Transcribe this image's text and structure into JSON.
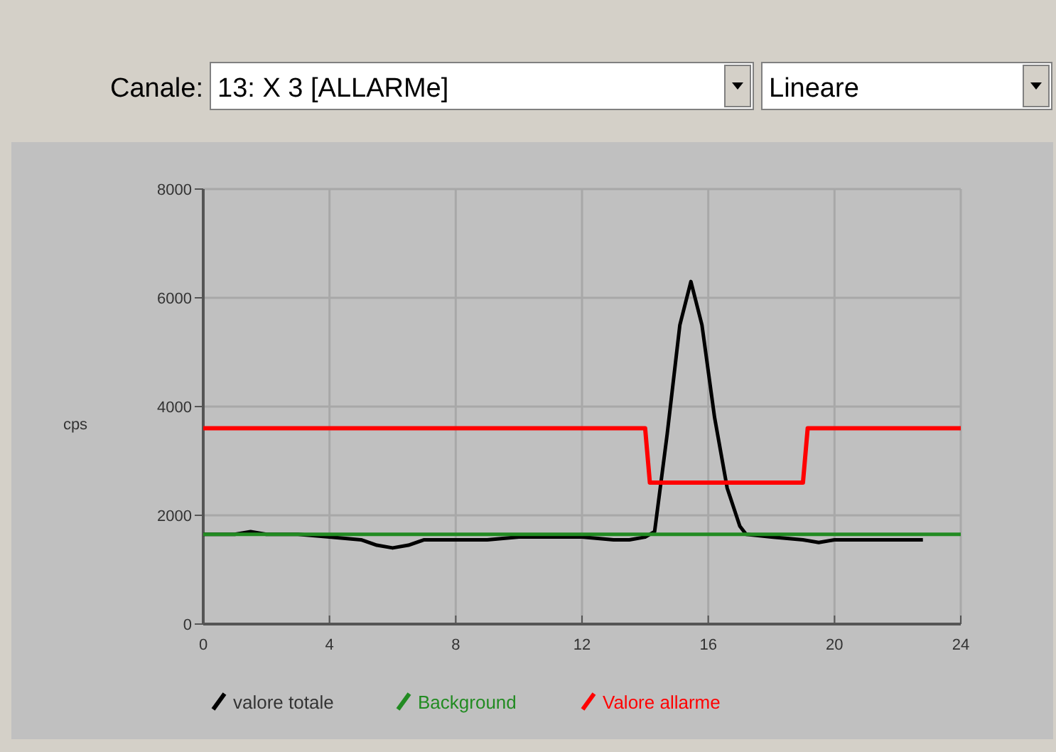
{
  "chart_data": {
    "type": "line",
    "ylabel": "cps",
    "annotations": [
      "Canale:",
      "13: X 3 [ALLARMe]",
      "Lineare"
    ],
    "xlim": [
      0,
      24
    ],
    "xticks": [
      0,
      4,
      8,
      12,
      16,
      20,
      24
    ],
    "ylim": [
      0,
      8000
    ],
    "yticks": [
      0,
      2000,
      4000,
      6000,
      8000
    ],
    "grid": true,
    "legend": "bottom",
    "line_style": "solid",
    "series": [
      {
        "name": "valore totale",
        "color": "#000000",
        "x": [
          0,
          1,
          1.5,
          2,
          3,
          4,
          5,
          5.5,
          6,
          6.5,
          7,
          8,
          9,
          10,
          11,
          12,
          13,
          13.5,
          14,
          14.3,
          14.7,
          15.1,
          15.45,
          15.8,
          16.2,
          16.6,
          17,
          17.2,
          18,
          19,
          19.5,
          20,
          21,
          22,
          22.8
        ],
        "values": [
          1650,
          1650,
          1700,
          1650,
          1650,
          1600,
          1550,
          1450,
          1400,
          1450,
          1550,
          1550,
          1550,
          1600,
          1600,
          1600,
          1550,
          1550,
          1600,
          1700,
          3500,
          5500,
          6300,
          5500,
          3800,
          2500,
          1800,
          1650,
          1600,
          1550,
          1500,
          1550,
          1550,
          1550,
          1550
        ]
      },
      {
        "name": "Background",
        "color": "#228b22",
        "x": [
          0,
          24
        ],
        "values": [
          1650,
          1650
        ]
      },
      {
        "name": "Valore allarme",
        "color": "#ff0000",
        "x": [
          0,
          14,
          14.15,
          19,
          19.15,
          24
        ],
        "values": [
          3600,
          3600,
          2600,
          2600,
          3600,
          3600
        ]
      }
    ]
  }
}
